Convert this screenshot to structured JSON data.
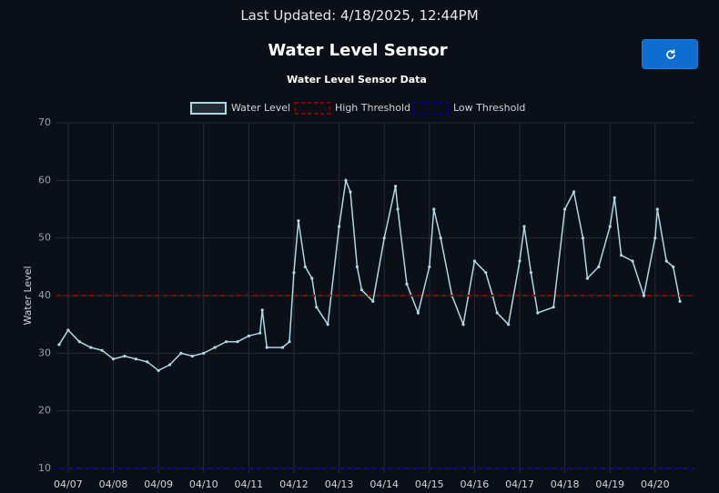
{
  "header": {
    "last_updated": "Last Updated: 4/18/2025, 12:44PM",
    "title": "Water Level Sensor"
  },
  "chart_data": {
    "type": "line",
    "title": "Water Level Sensor Data",
    "ylabel": "Water Level",
    "xlim": [
      -0.26,
      13.85
    ],
    "ylim": [
      10,
      70
    ],
    "yticks": [
      10,
      20,
      30,
      40,
      50,
      60,
      70
    ],
    "xticks": [
      {
        "value": 0,
        "label": "04/07"
      },
      {
        "value": 1,
        "label": "04/08"
      },
      {
        "value": 2,
        "label": "04/09"
      },
      {
        "value": 3,
        "label": "04/10"
      },
      {
        "value": 4,
        "label": "04/11"
      },
      {
        "value": 5,
        "label": "04/12"
      },
      {
        "value": 6,
        "label": "04/13"
      },
      {
        "value": 7,
        "label": "04/14"
      },
      {
        "value": 8,
        "label": "04/15"
      },
      {
        "value": 9,
        "label": "04/16"
      },
      {
        "value": 10,
        "label": "04/17"
      },
      {
        "value": 11,
        "label": "04/18"
      },
      {
        "value": 12,
        "label": "04/19"
      },
      {
        "value": 13,
        "label": "04/20"
      }
    ],
    "grid": true,
    "series": [
      {
        "name": "Water Level",
        "color": "#add8e6",
        "x": [
          -0.2,
          0,
          0.25,
          0.5,
          0.75,
          1,
          1.25,
          1.5,
          1.75,
          2,
          2.25,
          2.5,
          2.75,
          3,
          3.25,
          3.5,
          3.75,
          4,
          4.25,
          4.3,
          4.4,
          4.75,
          4.9,
          5,
          5.1,
          5.25,
          5.4,
          5.5,
          5.75,
          6,
          6.15,
          6.25,
          6.4,
          6.5,
          6.75,
          7,
          7.25,
          7.3,
          7.5,
          7.75,
          8,
          8.1,
          8.25,
          8.5,
          8.75,
          9,
          9.25,
          9.4,
          9.5,
          9.75,
          10,
          10.1,
          10.25,
          10.4,
          10.75,
          11,
          11.2,
          11.4,
          11.5,
          11.75,
          12,
          12.1,
          12.25,
          12.5,
          12.75,
          13,
          13.05,
          13.25,
          13.4,
          13.55
        ],
        "values": [
          31.5,
          34,
          32,
          31,
          30.5,
          29,
          29.5,
          29,
          28.5,
          27,
          28,
          30,
          29.5,
          30,
          31,
          32,
          32,
          33,
          33.5,
          37.5,
          31,
          31,
          32,
          44,
          53,
          45,
          43,
          38,
          35,
          52,
          60,
          58,
          45,
          41,
          39,
          50,
          59,
          55,
          42,
          37,
          45,
          55,
          50,
          40,
          35,
          46,
          44,
          40,
          37,
          35,
          46,
          52,
          44,
          37,
          38,
          55,
          58,
          50,
          43,
          45,
          52,
          57,
          47,
          46,
          40,
          50,
          55,
          46,
          45,
          39
        ]
      },
      {
        "name": "High Threshold",
        "color": "#8b0000",
        "value": 40
      },
      {
        "name": "Low Threshold",
        "color": "#00008b",
        "value": 10
      }
    ]
  }
}
